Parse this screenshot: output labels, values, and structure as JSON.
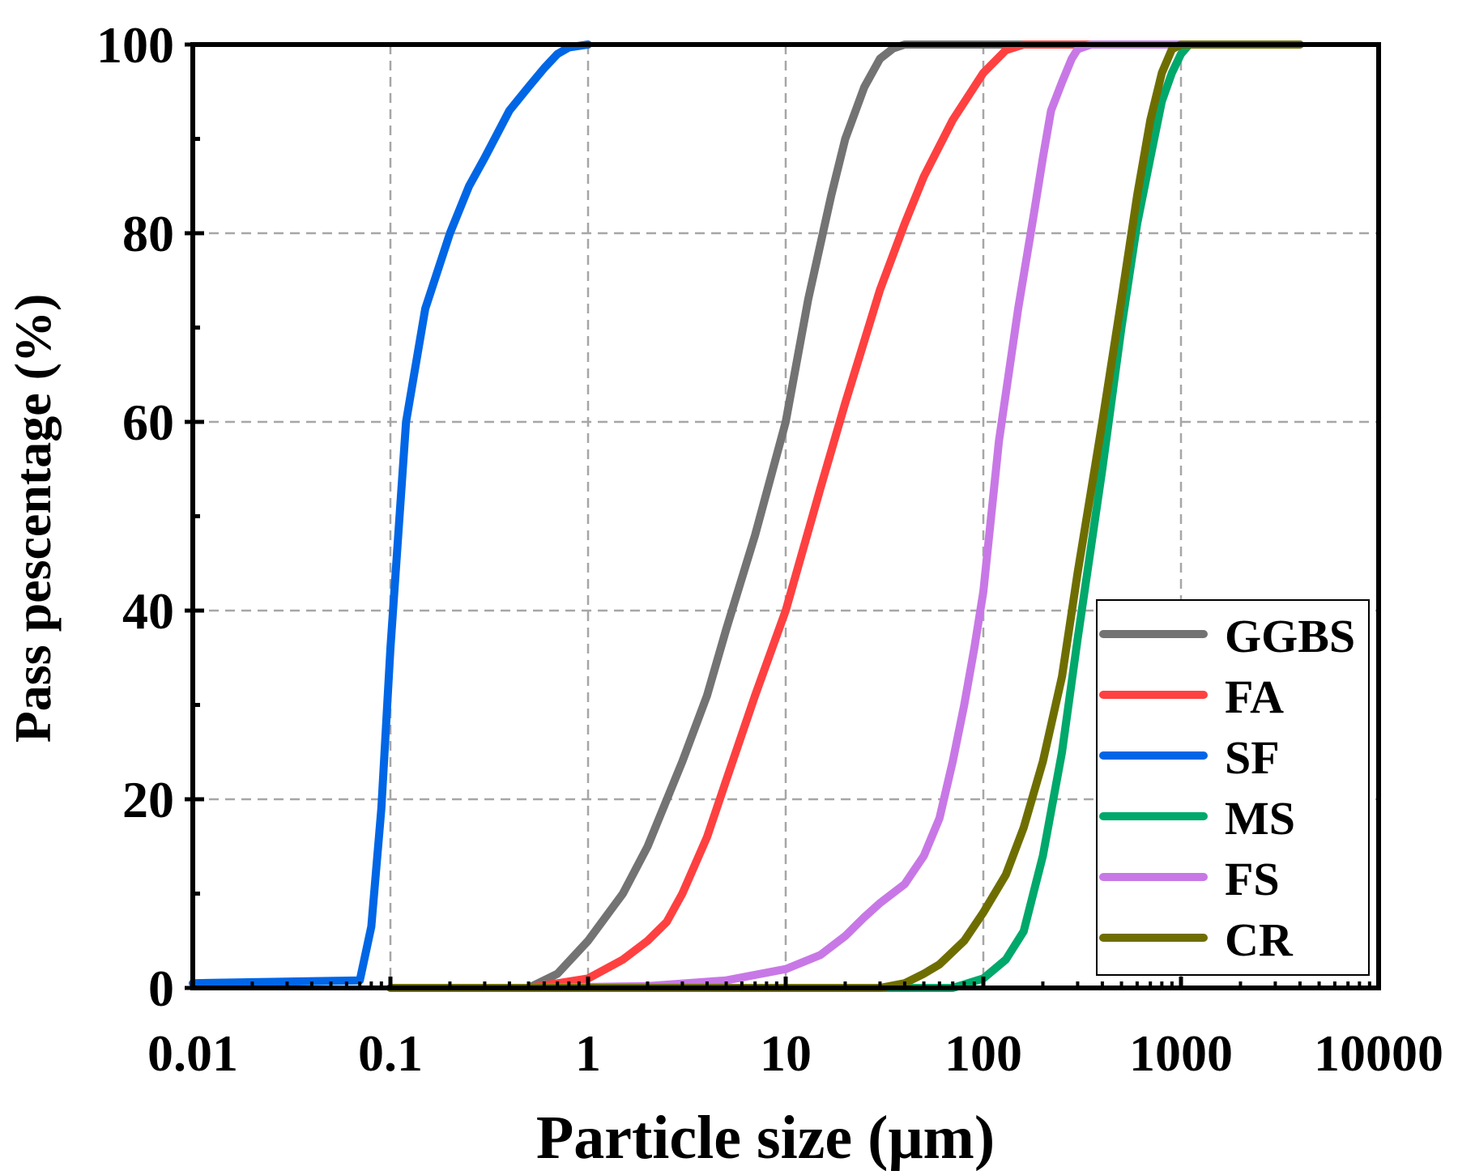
{
  "chart_data": {
    "type": "line",
    "x_scale": "log",
    "xlabel": "Particle size (μm)",
    "ylabel": "Pass pescentage (%)",
    "xlim": [
      0.01,
      10000
    ],
    "ylim": [
      0,
      100
    ],
    "x_ticks": [
      0.01,
      0.1,
      1,
      10,
      100,
      1000,
      10000
    ],
    "x_tick_labels": [
      "0.01",
      "0.1",
      "1",
      "10",
      "100",
      "1000",
      "10000"
    ],
    "y_ticks": [
      0,
      20,
      40,
      60,
      80,
      100
    ],
    "y_tick_labels": [
      "0",
      "20",
      "40",
      "60",
      "80",
      "100"
    ],
    "grid": true,
    "legend_position": "bottom-right",
    "series": [
      {
        "name": "GGBS",
        "color": "#737373",
        "x": [
          0.5,
          0.7,
          1,
          1.5,
          2,
          3,
          4,
          5,
          7,
          10,
          13,
          17,
          20,
          25,
          30,
          35,
          40,
          50,
          1000
        ],
        "y": [
          0,
          1.5,
          5,
          10,
          15,
          24,
          31,
          38,
          48,
          60,
          73,
          84,
          90,
          95.5,
          98.5,
          99.6,
          100,
          100,
          100
        ]
      },
      {
        "name": "FA",
        "color": "#ff4040",
        "x": [
          0.5,
          1,
          1.5,
          2,
          2.5,
          3,
          4,
          5,
          7,
          10,
          15,
          20,
          30,
          40,
          50,
          70,
          100,
          130,
          160,
          200,
          1000
        ],
        "y": [
          0,
          1,
          3,
          5,
          7,
          10,
          16,
          22,
          31,
          40,
          53,
          62,
          74,
          81,
          86,
          92,
          97,
          99.4,
          100,
          100,
          100
        ]
      },
      {
        "name": "SF",
        "color": "#0066e6",
        "x": [
          0.01,
          0.07,
          0.08,
          0.09,
          0.1,
          0.12,
          0.15,
          0.2,
          0.25,
          0.3,
          0.4,
          0.5,
          0.6,
          0.7,
          0.8,
          1
        ],
        "y": [
          0.5,
          0.8,
          6.5,
          19,
          36,
          60,
          72,
          80,
          85,
          88,
          93,
          95.5,
          97.5,
          99,
          99.7,
          100
        ]
      },
      {
        "name": "MS",
        "color": "#00a86b",
        "x": [
          0.1,
          70,
          100,
          130,
          160,
          200,
          250,
          300,
          400,
          500,
          600,
          700,
          800,
          900,
          1000,
          1100,
          4000
        ],
        "y": [
          0,
          0,
          1,
          3,
          6,
          14,
          25,
          37,
          55,
          70,
          81,
          88,
          94,
          97,
          99,
          100,
          100
        ]
      },
      {
        "name": "FS",
        "color": "#c878e6",
        "x": [
          0.5,
          2,
          5,
          10,
          15,
          20,
          25,
          30,
          40,
          50,
          60,
          70,
          80,
          90,
          100,
          120,
          150,
          180,
          200,
          220,
          250,
          280,
          300,
          350,
          4000
        ],
        "y": [
          0,
          0.2,
          0.8,
          2,
          3.5,
          5.5,
          7.5,
          9,
          11,
          14,
          18,
          24,
          30,
          36,
          42,
          58,
          72,
          82,
          88,
          93,
          96,
          98.5,
          99.5,
          100,
          100
        ]
      },
      {
        "name": "CR",
        "color": "#6e6e00",
        "x": [
          0.1,
          30,
          40,
          50,
          60,
          80,
          100,
          130,
          160,
          200,
          250,
          300,
          400,
          500,
          600,
          700,
          800,
          900,
          1000,
          4000
        ],
        "y": [
          0,
          0,
          0.5,
          1.5,
          2.5,
          5,
          8,
          12,
          17,
          24,
          33,
          44,
          60,
          73,
          84,
          92,
          97,
          99.5,
          100,
          100
        ]
      }
    ]
  }
}
